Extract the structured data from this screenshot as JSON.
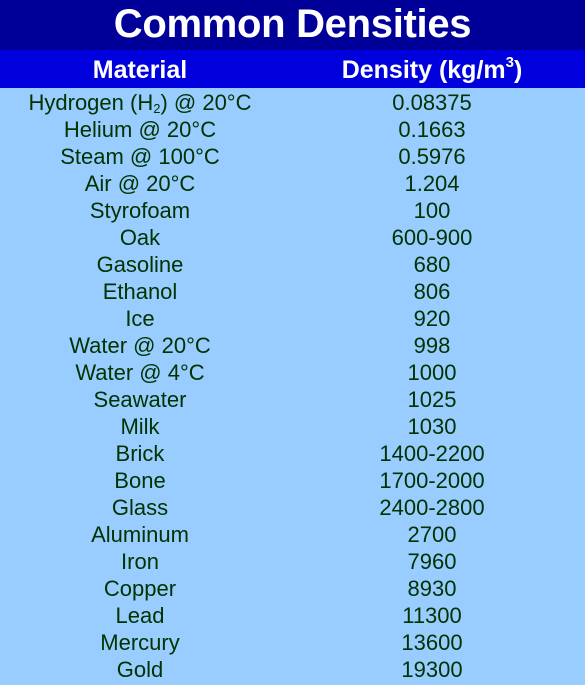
{
  "title": "Common Densities",
  "header": {
    "material": "Material",
    "density": "Density (kg/m",
    "density_exp": "3",
    "density_close": ")"
  },
  "hydrogen": {
    "name": "Hydrogen (H",
    "subscript": "2",
    "suffix": ") @ 20°C",
    "density": "0.08375"
  },
  "rows": [
    {
      "material": "Helium @ 20°C",
      "density": "0.1663"
    },
    {
      "material": "Steam @ 100°C",
      "density": "0.5976"
    },
    {
      "material": "Air @ 20°C",
      "density": "1.204"
    },
    {
      "material": "Styrofoam",
      "density": "100"
    },
    {
      "material": "Oak",
      "density": "600-900"
    },
    {
      "material": "Gasoline",
      "density": "680"
    },
    {
      "material": "Ethanol",
      "density": "806"
    },
    {
      "material": "Ice",
      "density": "920"
    },
    {
      "material": "Water @ 20°C",
      "density": "998"
    },
    {
      "material": "Water @ 4°C",
      "density": "1000"
    },
    {
      "material": "Seawater",
      "density": "1025"
    },
    {
      "material": "Milk",
      "density": "1030"
    },
    {
      "material": "Brick",
      "density": "1400-2200"
    },
    {
      "material": "Bone",
      "density": "1700-2000"
    },
    {
      "material": "Glass",
      "density": "2400-2800"
    },
    {
      "material": "Aluminum",
      "density": "2700"
    },
    {
      "material": "Iron",
      "density": "7960"
    },
    {
      "material": "Copper",
      "density": "8930"
    },
    {
      "material": "Lead",
      "density": "11300"
    },
    {
      "material": "Mercury",
      "density": "13600"
    },
    {
      "material": "Gold",
      "density": "19300"
    }
  ]
}
